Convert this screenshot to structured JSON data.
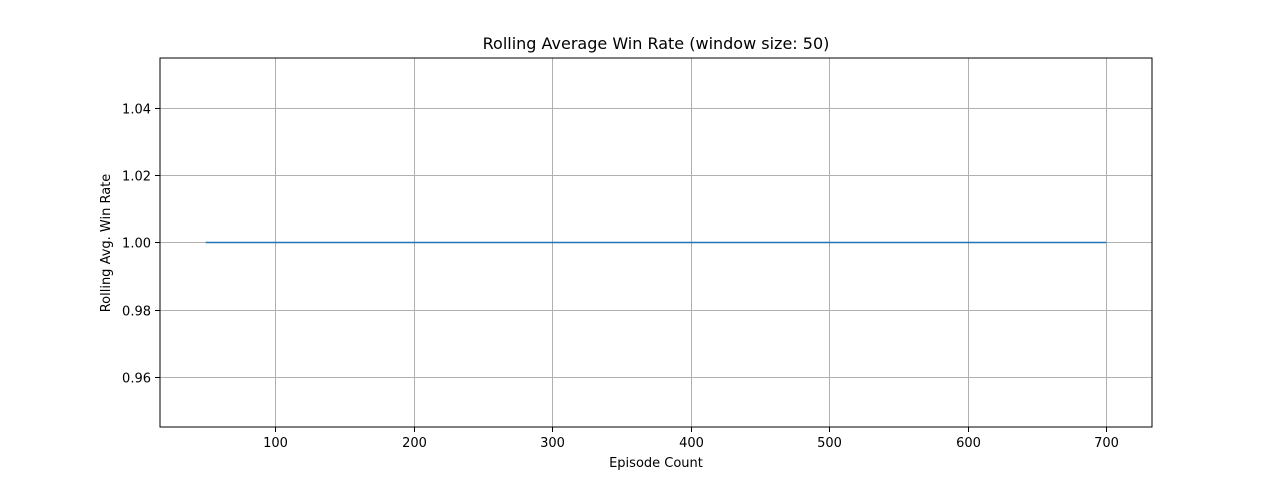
{
  "chart_data": {
    "type": "line",
    "title": "Rolling Average Win Rate (window size: 50)",
    "xlabel": "Episode Count",
    "ylabel": "Rolling Avg. Win Rate",
    "xlim": [
      17,
      733
    ],
    "ylim": [
      0.945,
      1.055
    ],
    "xticks": [
      100,
      200,
      300,
      400,
      500,
      600,
      700
    ],
    "yticks": [
      0.96,
      0.98,
      1.0,
      1.02,
      1.04
    ],
    "xtick_labels": [
      "100",
      "200",
      "300",
      "400",
      "500",
      "600",
      "700"
    ],
    "ytick_labels": [
      "0.96",
      "0.98",
      "1.00",
      "1.02",
      "1.04"
    ],
    "grid": true,
    "series": [
      {
        "color": "#1f77b4",
        "x": [
          50,
          700
        ],
        "y": [
          1.0,
          1.0
        ]
      }
    ]
  }
}
